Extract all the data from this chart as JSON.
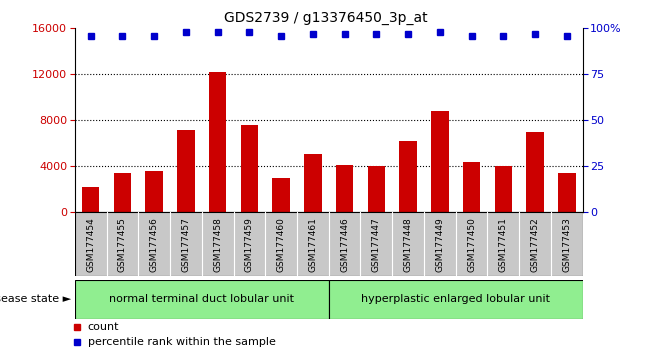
{
  "title": "GDS2739 / g13376450_3p_at",
  "samples": [
    "GSM177454",
    "GSM177455",
    "GSM177456",
    "GSM177457",
    "GSM177458",
    "GSM177459",
    "GSM177460",
    "GSM177461",
    "GSM177446",
    "GSM177447",
    "GSM177448",
    "GSM177449",
    "GSM177450",
    "GSM177451",
    "GSM177452",
    "GSM177453"
  ],
  "counts": [
    2200,
    3400,
    3600,
    7200,
    12200,
    7600,
    3000,
    5100,
    4100,
    4000,
    6200,
    8800,
    4400,
    4000,
    7000,
    3400
  ],
  "percentiles": [
    96,
    96,
    96,
    98,
    98,
    98,
    96,
    97,
    97,
    97,
    97,
    98,
    96,
    96,
    97,
    96
  ],
  "group1_label": "normal terminal duct lobular unit",
  "group2_label": "hyperplastic enlarged lobular unit",
  "group1_count": 8,
  "group2_count": 8,
  "bar_color": "#cc0000",
  "dot_color": "#0000cc",
  "group1_bg": "#90ee90",
  "group2_bg": "#90ee90",
  "label_bg": "#c8c8c8",
  "ylim_left": [
    0,
    16000
  ],
  "yticks_left": [
    0,
    4000,
    8000,
    12000,
    16000
  ],
  "ylim_right": [
    0,
    100
  ],
  "yticks_right": [
    0,
    25,
    50,
    75,
    100
  ],
  "legend_count_label": "count",
  "legend_pct_label": "percentile rank within the sample",
  "disease_state_label": "disease state"
}
